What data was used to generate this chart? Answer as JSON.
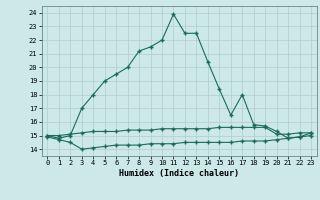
{
  "title": "",
  "xlabel": "Humidex (Indice chaleur)",
  "ylabel": "",
  "xlim": [
    -0.5,
    23.5
  ],
  "ylim": [
    13.5,
    24.5
  ],
  "xticks": [
    0,
    1,
    2,
    3,
    4,
    5,
    6,
    7,
    8,
    9,
    10,
    11,
    12,
    13,
    14,
    15,
    16,
    17,
    18,
    19,
    20,
    21,
    22,
    23
  ],
  "yticks": [
    14,
    15,
    16,
    17,
    18,
    19,
    20,
    21,
    22,
    23,
    24
  ],
  "background_color": "#cce8e8",
  "grid_color": "#b0cccc",
  "line_color": "#1a6b5a",
  "curve1_x": [
    0,
    1,
    2,
    3,
    4,
    5,
    6,
    7,
    8,
    9,
    10,
    11,
    12,
    13,
    14,
    15,
    16,
    17,
    18,
    19,
    20,
    21,
    22,
    23
  ],
  "curve1_y": [
    15.0,
    14.8,
    15.0,
    17.0,
    18.0,
    19.0,
    19.5,
    20.0,
    21.2,
    21.5,
    22.0,
    23.9,
    22.5,
    22.5,
    20.4,
    18.4,
    16.5,
    18.0,
    15.8,
    15.7,
    15.3,
    14.8,
    14.9,
    15.2
  ],
  "curve2_x": [
    0,
    1,
    2,
    3,
    4,
    5,
    6,
    7,
    8,
    9,
    10,
    11,
    12,
    13,
    14,
    15,
    16,
    17,
    18,
    19,
    20,
    21,
    22,
    23
  ],
  "curve2_y": [
    15.0,
    15.0,
    15.1,
    15.2,
    15.3,
    15.3,
    15.3,
    15.4,
    15.4,
    15.4,
    15.5,
    15.5,
    15.5,
    15.5,
    15.5,
    15.6,
    15.6,
    15.6,
    15.6,
    15.6,
    15.1,
    15.1,
    15.2,
    15.2
  ],
  "curve3_x": [
    0,
    1,
    2,
    3,
    4,
    5,
    6,
    7,
    8,
    9,
    10,
    11,
    12,
    13,
    14,
    15,
    16,
    17,
    18,
    19,
    20,
    21,
    22,
    23
  ],
  "curve3_y": [
    14.9,
    14.7,
    14.5,
    14.0,
    14.1,
    14.2,
    14.3,
    14.3,
    14.3,
    14.4,
    14.4,
    14.4,
    14.5,
    14.5,
    14.5,
    14.5,
    14.5,
    14.6,
    14.6,
    14.6,
    14.7,
    14.8,
    14.9,
    15.0
  ]
}
